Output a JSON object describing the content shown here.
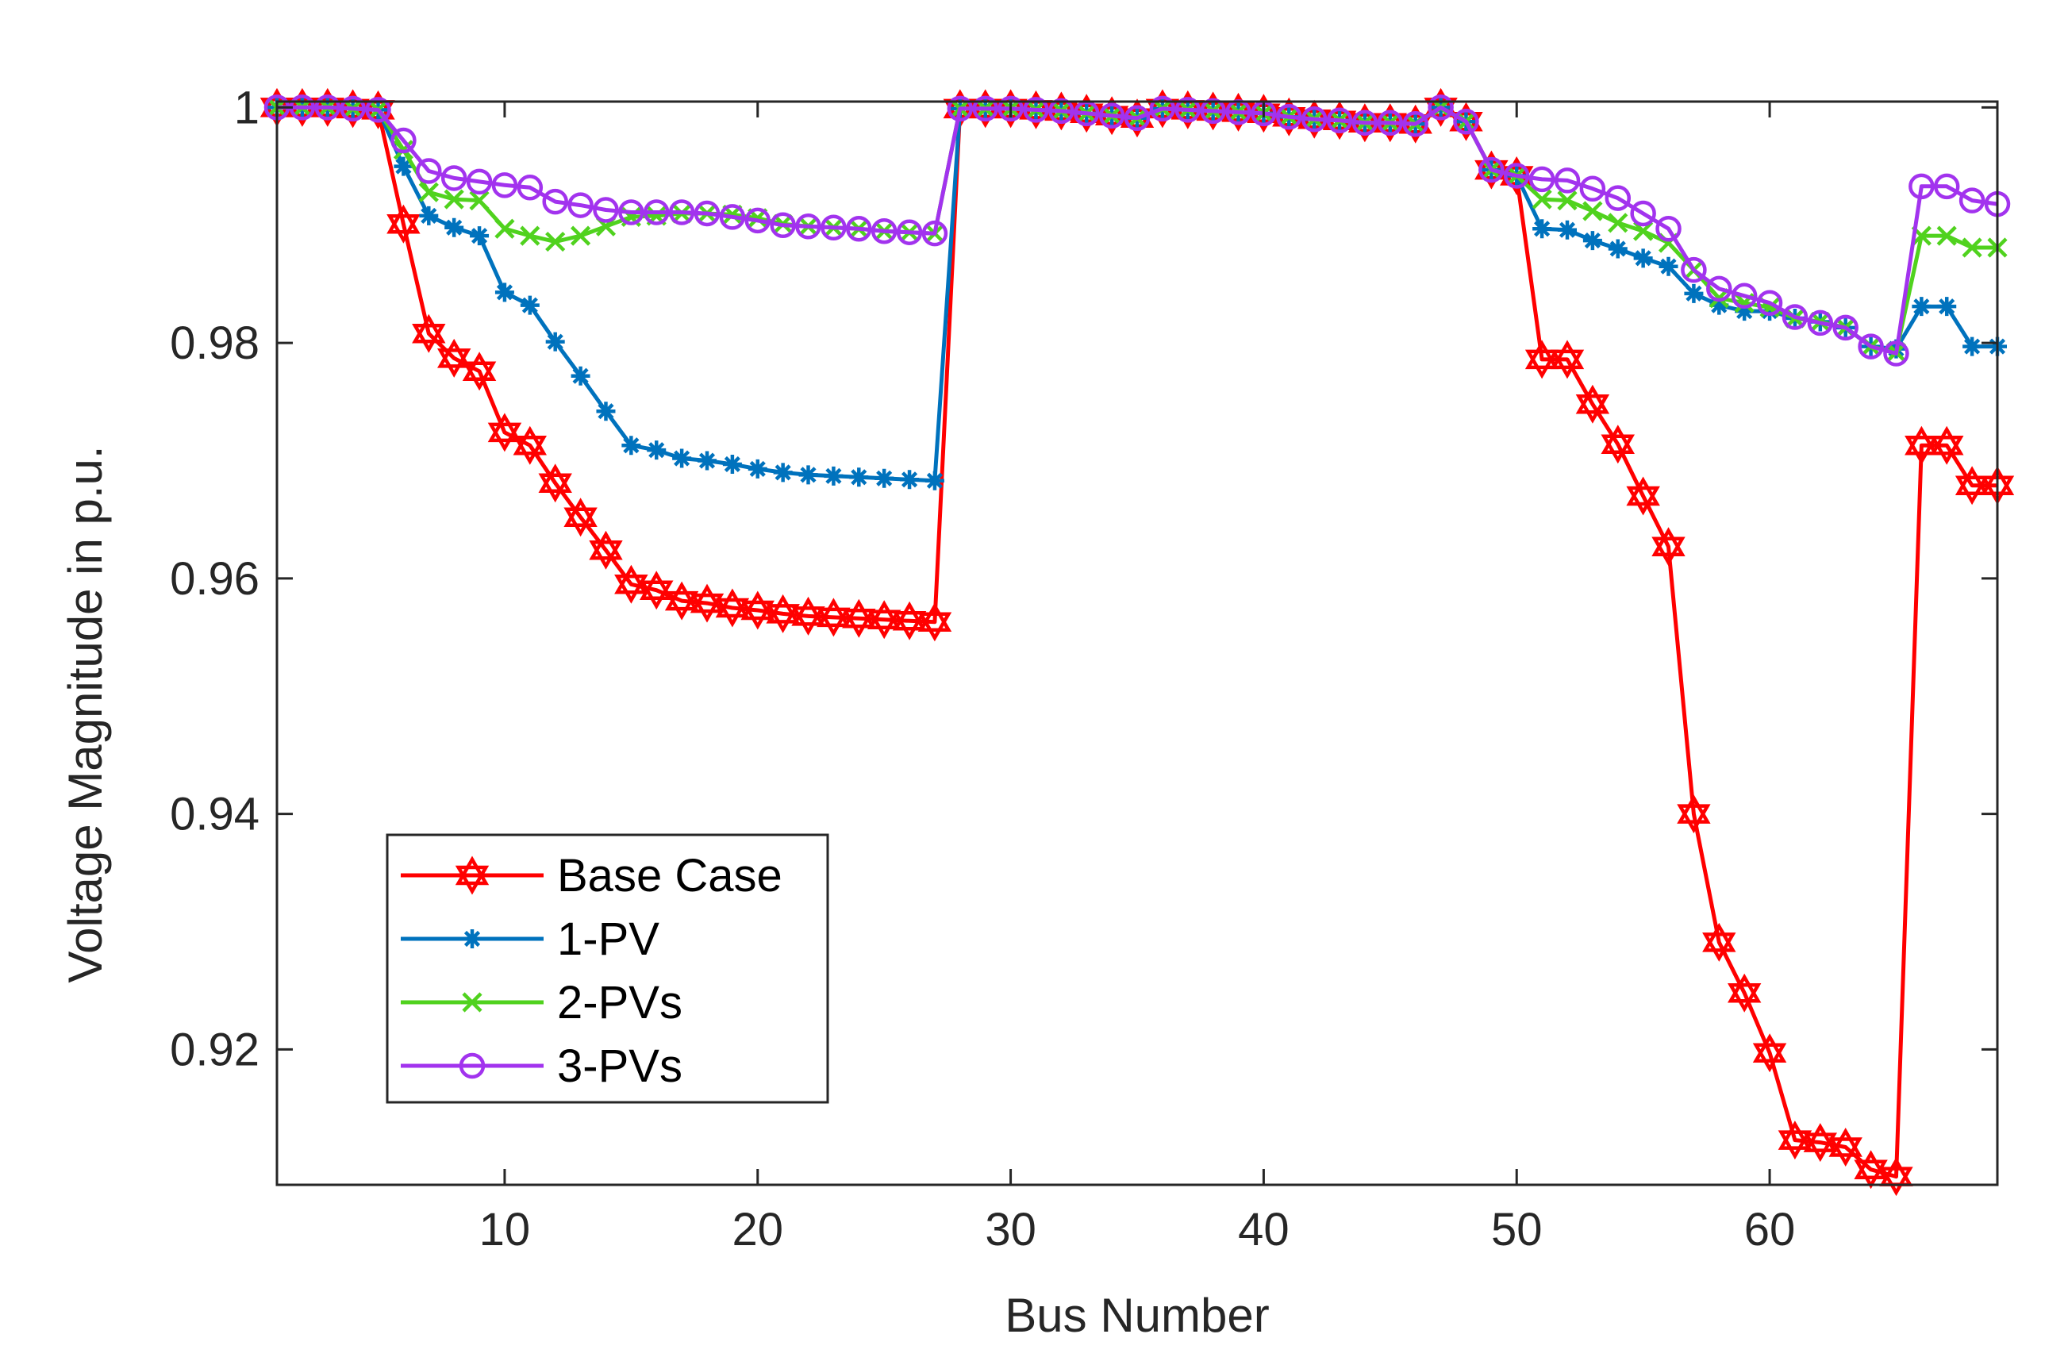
{
  "chart_data": {
    "type": "line",
    "title": "",
    "xlabel": "Bus Number",
    "ylabel": "Voltage Magnitude in p.u.",
    "xlim": [
      1,
      69
    ],
    "ylim": [
      0.9085,
      1.0005
    ],
    "xticks": [
      10,
      20,
      30,
      40,
      50,
      60
    ],
    "xtick_labels": [
      "10",
      "20",
      "30",
      "40",
      "50",
      "60"
    ],
    "yticks": [
      0.92,
      0.94,
      0.96,
      0.98,
      1.0
    ],
    "ytick_labels": [
      "0.92",
      "0.94",
      "0.96",
      "0.98",
      "1"
    ],
    "grid": false,
    "legend_location": "lower-left",
    "series": [
      {
        "name": "Base Case",
        "color": "#ff0000",
        "marker": "hexagram",
        "values": [
          1.0,
          1.0,
          1.0,
          0.9999,
          0.9998,
          0.9901,
          0.9808,
          0.9787,
          0.9776,
          0.9724,
          0.9713,
          0.9681,
          0.9652,
          0.9624,
          0.9595,
          0.959,
          0.9581,
          0.9579,
          0.9575,
          0.9573,
          0.957,
          0.9568,
          0.9567,
          0.9566,
          0.9565,
          0.9564,
          0.9563,
          0.9999,
          0.9999,
          0.9999,
          0.9998,
          0.9997,
          0.9995,
          0.9993,
          0.9991,
          0.9999,
          0.9998,
          0.9997,
          0.9996,
          0.9995,
          0.9992,
          0.999,
          0.9989,
          0.9987,
          0.9987,
          0.9986,
          1.0,
          0.9988,
          0.9947,
          0.9942,
          0.9786,
          0.9786,
          0.9748,
          0.9714,
          0.967,
          0.9627,
          0.94,
          0.9291,
          0.9248,
          0.9197,
          0.9123,
          0.9121,
          0.9117,
          0.9098,
          0.9092,
          0.9713,
          0.9713,
          0.9679,
          0.9679
        ]
      },
      {
        "name": "1-PV",
        "color": "#0072bd",
        "marker": "asterisk",
        "values": [
          1.0,
          1.0,
          1.0,
          0.9999,
          0.9998,
          0.995,
          0.9908,
          0.9898,
          0.9891,
          0.9843,
          0.9832,
          0.9801,
          0.9772,
          0.9742,
          0.9713,
          0.9709,
          0.9702,
          0.97,
          0.9697,
          0.9693,
          0.969,
          0.9688,
          0.9687,
          0.9686,
          0.9685,
          0.9684,
          0.9683,
          0.9999,
          0.9999,
          0.9999,
          0.9998,
          0.9997,
          0.9995,
          0.9993,
          0.9991,
          0.9999,
          0.9998,
          0.9997,
          0.9996,
          0.9995,
          0.9992,
          0.999,
          0.9989,
          0.9987,
          0.9987,
          0.9986,
          1.0,
          0.9988,
          0.9947,
          0.9942,
          0.9897,
          0.9896,
          0.9887,
          0.988,
          0.9872,
          0.9865,
          0.9842,
          0.9832,
          0.9827,
          0.9827,
          0.9821,
          0.9818,
          0.9813,
          0.9797,
          0.9795,
          0.9831,
          0.9831,
          0.9797,
          0.9797
        ]
      },
      {
        "name": "2-PVs",
        "color": "#50d21e",
        "marker": "x",
        "values": [
          1.0,
          1.0,
          1.0,
          0.9999,
          0.9998,
          0.9964,
          0.9928,
          0.9922,
          0.9921,
          0.9897,
          0.9891,
          0.9886,
          0.9891,
          0.9899,
          0.9907,
          0.9908,
          0.991,
          0.991,
          0.9909,
          0.9906,
          0.9901,
          0.9899,
          0.9898,
          0.9897,
          0.9895,
          0.9894,
          0.9893,
          0.9999,
          0.9999,
          0.9999,
          0.9998,
          0.9997,
          0.9995,
          0.9993,
          0.9991,
          0.9999,
          0.9998,
          0.9997,
          0.9996,
          0.9995,
          0.9992,
          0.999,
          0.9989,
          0.9987,
          0.9987,
          0.9986,
          1.0,
          0.9988,
          0.9947,
          0.9942,
          0.9922,
          0.9921,
          0.9912,
          0.9902,
          0.9895,
          0.9885,
          0.9862,
          0.9838,
          0.9834,
          0.983,
          0.9821,
          0.9818,
          0.9813,
          0.9797,
          0.9792,
          0.9891,
          0.9891,
          0.9881,
          0.9881
        ]
      },
      {
        "name": "3-PVs",
        "color": "#a233ee",
        "marker": "circle",
        "values": [
          1.0,
          1.0,
          1.0,
          0.9999,
          0.9998,
          0.9972,
          0.9946,
          0.994,
          0.9937,
          0.9934,
          0.9932,
          0.992,
          0.9917,
          0.9913,
          0.9911,
          0.9911,
          0.9911,
          0.991,
          0.9907,
          0.9904,
          0.99,
          0.9899,
          0.9898,
          0.9897,
          0.9895,
          0.9894,
          0.9893,
          0.9999,
          0.9999,
          0.9999,
          0.9998,
          0.9997,
          0.9995,
          0.9993,
          0.9991,
          0.9999,
          0.9998,
          0.9997,
          0.9996,
          0.9995,
          0.9992,
          0.999,
          0.9989,
          0.9987,
          0.9987,
          0.9986,
          1.0,
          0.9988,
          0.9947,
          0.9942,
          0.9939,
          0.9938,
          0.9931,
          0.9923,
          0.991,
          0.9897,
          0.9862,
          0.9846,
          0.984,
          0.9834,
          0.9822,
          0.9817,
          0.9813,
          0.9797,
          0.9791,
          0.9933,
          0.9933,
          0.9921,
          0.9918
        ]
      }
    ]
  }
}
